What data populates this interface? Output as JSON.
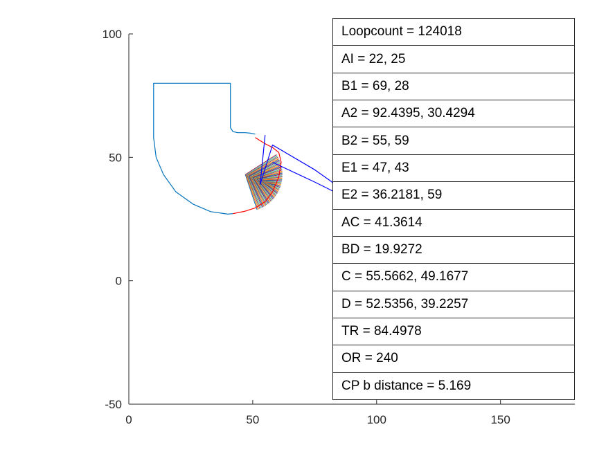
{
  "chart_data": {
    "type": "line",
    "xlim": [
      0,
      180
    ],
    "ylim": [
      -50,
      100
    ],
    "xticks": [
      0,
      50,
      100,
      150
    ],
    "yticks": [
      -50,
      0,
      50,
      100
    ],
    "grid": false,
    "series": [
      {
        "color": "#0072BD",
        "role": "outline",
        "points": [
          [
            41,
            62
          ],
          [
            41,
            80
          ],
          [
            10,
            80
          ],
          [
            10,
            58
          ],
          [
            11,
            50
          ],
          [
            14,
            43
          ],
          [
            19,
            36
          ],
          [
            26,
            31
          ],
          [
            33,
            28
          ],
          [
            40,
            27
          ],
          [
            42,
            27.2
          ]
        ]
      },
      {
        "color": "#0072BD",
        "role": "neck",
        "points": [
          [
            41,
            62
          ],
          [
            42,
            60.4
          ],
          [
            44,
            60
          ],
          [
            47,
            60
          ],
          [
            49,
            59.8
          ],
          [
            51,
            59.4
          ]
        ]
      },
      {
        "color": "#FF0000",
        "role": "arc",
        "points": [
          [
            42,
            27.2
          ],
          [
            47,
            28.2
          ],
          [
            51,
            29.5
          ],
          [
            55,
            32
          ],
          [
            58,
            36
          ],
          [
            60.5,
            42
          ],
          [
            61.5,
            48
          ],
          [
            60.5,
            52
          ],
          [
            58,
            54
          ],
          [
            55,
            55.5
          ],
          [
            51,
            58
          ]
        ]
      },
      {
        "color": "#0000FF",
        "role": "arm",
        "points": [
          [
            53,
            39
          ],
          [
            55,
            59
          ]
        ]
      },
      {
        "color": "#0000FF",
        "role": "arm",
        "points": [
          [
            53,
            39
          ],
          [
            58,
            55
          ],
          [
            75,
            45
          ],
          [
            82,
            40
          ],
          [
            86,
            34
          ],
          [
            87,
            26
          ]
        ]
      },
      {
        "color": "#0000FF",
        "role": "arm",
        "points": [
          [
            58,
            48
          ],
          [
            75,
            40
          ],
          [
            93,
            31
          ]
        ]
      }
    ],
    "fan": {
      "description": "dense multicolored line fan between hub and arc",
      "hub_range": [
        [
          47,
          43
        ],
        [
          55,
          40
        ]
      ],
      "arc_segment": [
        [
          52,
          28
        ],
        [
          61,
          52
        ]
      ]
    }
  },
  "info_panel": {
    "rows": [
      "Loopcount =  124018",
      "AI = 22, 25",
      "B1 = 69, 28",
      "A2 = 92.4395, 30.4294",
      "B2 = 55, 59",
      "E1 = 47, 43",
      "E2 = 36.2181, 59",
      "AC = 41.3614",
      "BD = 19.9272",
      "C = 55.5662, 49.1677",
      "D = 52.5356, 39.2257",
      "TR = 84.4978",
      "OR = 240",
      "CP b distance = 5.169"
    ]
  }
}
